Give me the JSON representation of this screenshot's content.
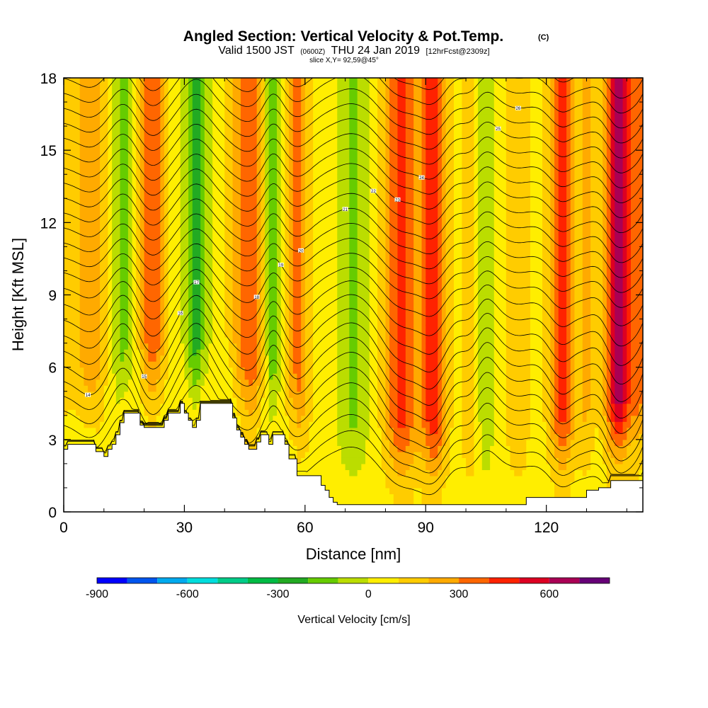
{
  "chart_data": {
    "type": "heatmap",
    "title": {
      "main": "Angled Section: Vertical Velocity & Pot.Temp.",
      "unit_tag": "(C)"
    },
    "subtitle": {
      "valid": "Valid 1500 JST",
      "utc": "(0600Z)",
      "date": "THU 24 Jan 2019",
      "forecast": "[12hrFcst@2309z]",
      "slice": "slice X,Y= 92,59@45°"
    },
    "xlabel": "Distance [nm]",
    "ylabel": "Height [Kft MSL]",
    "xlim": [
      0,
      144
    ],
    "ylim": [
      0,
      18
    ],
    "x_ticks": [
      "0",
      "30",
      "60",
      "90",
      "120"
    ],
    "x_tick_values": [
      0,
      30,
      60,
      90,
      120
    ],
    "x_minor_ticks": [
      10,
      20,
      40,
      50,
      70,
      80,
      100,
      110,
      130,
      140
    ],
    "y_ticks": [
      "0",
      "3",
      "6",
      "9",
      "12",
      "15",
      "18"
    ],
    "y_tick_values": [
      0,
      3,
      6,
      9,
      12,
      15,
      18
    ],
    "colorbar": {
      "title": "Vertical Velocity [cm/s]",
      "levels": [
        -900,
        -800,
        -700,
        -600,
        -500,
        -400,
        -300,
        -200,
        -100,
        0,
        100,
        200,
        300,
        400,
        500,
        600,
        700
      ],
      "colors": [
        "#0000ff",
        "#0055ee",
        "#00aaee",
        "#00dddd",
        "#00cc88",
        "#00bb44",
        "#22aa22",
        "#66cc00",
        "#bbdd00",
        "#ffee00",
        "#ffcc00",
        "#ffaa00",
        "#ff6600",
        "#ff2200",
        "#dd0022",
        "#aa0055",
        "#660077"
      ],
      "tick_labels": [
        "-900",
        "-600",
        "-300",
        "0",
        "300",
        "600"
      ],
      "tick_values": [
        -900,
        -600,
        -300,
        0,
        300,
        600
      ]
    },
    "velocity_bands": [
      {
        "x": 0,
        "w": 100,
        "wid": 6
      },
      {
        "x": 7,
        "w": 200,
        "wid": 3
      },
      {
        "x": 15,
        "w": -220,
        "wid": 2.5
      },
      {
        "x": 22,
        "w": 320,
        "wid": 3
      },
      {
        "x": 33,
        "w": -320,
        "wid": 3
      },
      {
        "x": 46,
        "w": 330,
        "wid": 4
      },
      {
        "x": 52,
        "w": -280,
        "wid": 2
      },
      {
        "x": 58,
        "w": 250,
        "wid": 3
      },
      {
        "x": 72,
        "w": -180,
        "wid": 4
      },
      {
        "x": 84,
        "w": 380,
        "wid": 4
      },
      {
        "x": 92,
        "w": 420,
        "wid": 3
      },
      {
        "x": 101,
        "w": 120,
        "wid": 2
      },
      {
        "x": 105,
        "w": -150,
        "wid": 2
      },
      {
        "x": 113,
        "w": 120,
        "wid": 3
      },
      {
        "x": 124,
        "w": 400,
        "wid": 3
      },
      {
        "x": 130,
        "w": 150,
        "wid": 2
      },
      {
        "x": 138,
        "w": 620,
        "wid": 3
      },
      {
        "x": 143,
        "w": 250,
        "wid": 2
      }
    ],
    "terrain": [
      [
        0,
        2.6
      ],
      [
        1,
        2.8
      ],
      [
        3,
        2.8
      ],
      [
        7,
        2.8
      ],
      [
        8,
        2.5
      ],
      [
        9,
        2.5
      ],
      [
        10,
        2.3
      ],
      [
        11,
        2.6
      ],
      [
        12,
        2.8
      ],
      [
        13,
        3.2
      ],
      [
        14,
        3.7
      ],
      [
        15,
        4.1
      ],
      [
        18,
        4.1
      ],
      [
        19,
        3.6
      ],
      [
        20,
        3.5
      ],
      [
        21,
        3.5
      ],
      [
        24,
        3.5
      ],
      [
        25,
        3.8
      ],
      [
        26,
        4.1
      ],
      [
        28,
        4.1
      ],
      [
        29,
        4.5
      ],
      [
        30,
        4.1
      ],
      [
        31,
        3.8
      ],
      [
        32,
        3.5
      ],
      [
        33,
        3.8
      ],
      [
        34,
        4.5
      ],
      [
        41,
        4.5
      ],
      [
        42,
        3.9
      ],
      [
        43,
        3.4
      ],
      [
        44,
        3.1
      ],
      [
        45,
        2.8
      ],
      [
        46,
        2.6
      ],
      [
        47,
        2.6
      ],
      [
        48,
        2.9
      ],
      [
        49,
        3.2
      ],
      [
        50,
        3.2
      ],
      [
        51,
        2.8
      ],
      [
        52,
        3.2
      ],
      [
        54,
        3.2
      ],
      [
        55,
        2.8
      ],
      [
        56,
        2.2
      ],
      [
        57,
        2.2
      ],
      [
        58,
        1.5
      ],
      [
        59,
        1.5
      ],
      [
        63,
        1.5
      ],
      [
        64,
        1.1
      ],
      [
        65,
        0.9
      ],
      [
        66,
        0.6
      ],
      [
        67,
        0.4
      ],
      [
        68,
        0.3
      ],
      [
        105,
        0.3
      ],
      [
        114,
        0.3
      ],
      [
        115,
        0.6
      ],
      [
        129,
        0.6
      ],
      [
        130,
        0.9
      ],
      [
        133,
        1
      ],
      [
        136,
        1.3
      ],
      [
        144,
        1.3
      ]
    ],
    "theta_level_count": 28,
    "theta_label_values": [
      "14",
      "15",
      "16",
      "17",
      "18",
      "19",
      "20",
      "21",
      "22",
      "23",
      "24",
      "25",
      "26"
    ]
  }
}
